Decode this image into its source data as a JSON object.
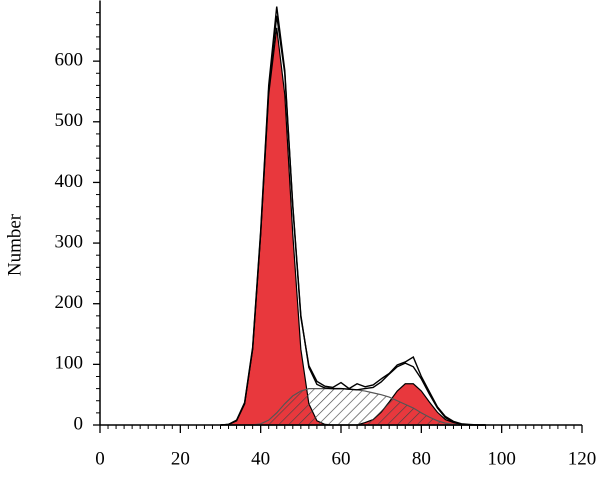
{
  "chart_data": {
    "type": "histogram-fit",
    "y_label": "Number",
    "x": [
      30,
      32,
      34,
      36,
      38,
      40,
      42,
      44,
      46,
      48,
      50,
      52,
      54,
      56,
      58,
      60,
      62,
      64,
      66,
      68,
      70,
      72,
      74,
      76,
      78,
      80,
      82,
      84,
      86,
      88,
      90,
      92,
      94,
      96
    ],
    "series": [
      {
        "style": "hatch-area",
        "color": "#555555",
        "values": [
          0,
          0,
          0,
          0,
          0,
          2,
          8,
          20,
          35,
          48,
          56,
          60,
          60,
          60,
          60,
          60,
          59,
          58,
          56,
          53,
          50,
          46,
          40,
          34,
          28,
          20,
          13,
          7,
          3,
          1,
          0,
          0,
          0,
          0
        ]
      },
      {
        "style": "area",
        "color": "#e8383d",
        "values": [
          0,
          1,
          7,
          35,
          125,
          314,
          545,
          655,
          545,
          314,
          125,
          35,
          7,
          1,
          0,
          0,
          0,
          0,
          0,
          0,
          0,
          0,
          0,
          0,
          0,
          0,
          0,
          0,
          0,
          0,
          0,
          0,
          0,
          0
        ]
      },
      {
        "style": "area",
        "color": "#e8383d",
        "values": [
          0,
          0,
          0,
          0,
          0,
          0,
          0,
          0,
          0,
          0,
          0,
          0,
          0,
          0,
          0,
          0,
          0,
          0,
          4,
          9,
          21,
          38,
          56,
          68,
          68,
          56,
          38,
          21,
          9,
          4,
          1,
          0,
          0,
          0
        ]
      },
      {
        "style": "line",
        "color": "#000000",
        "values": [
          0,
          1,
          7,
          35,
          125,
          316,
          553,
          675,
          580,
          362,
          181,
          95,
          67,
          61,
          60,
          60,
          59,
          58,
          60,
          62,
          71,
          84,
          96,
          102,
          96,
          76,
          51,
          28,
          12,
          5,
          1,
          0,
          0,
          0
        ]
      },
      {
        "style": "line",
        "color": "#000000",
        "values": [
          0,
          1,
          8,
          37,
          128,
          320,
          560,
          690,
          585,
          360,
          178,
          98,
          72,
          64,
          62,
          70,
          60,
          68,
          63,
          66,
          76,
          85,
          99,
          104,
          112,
          80,
          55,
          30,
          14,
          6,
          2,
          1,
          0,
          0
        ]
      }
    ],
    "xlim": [
      0,
      120
    ],
    "xticks": [
      0,
      20,
      40,
      60,
      80,
      100,
      120
    ],
    "ylim": [
      0,
      700
    ],
    "yticks": [
      0,
      100,
      200,
      300,
      400,
      500,
      600
    ],
    "x_minor_per_major": 10,
    "y_minor_per_major": 5
  }
}
